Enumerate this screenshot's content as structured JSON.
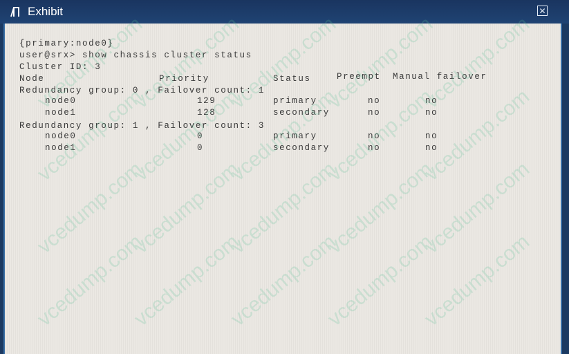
{
  "window": {
    "title": "Exhibit",
    "close_icon": "close-icon",
    "title_icon": "exhibit-icon"
  },
  "terminal": {
    "prompt_context": "{primary:node0}",
    "command": "user@srx> show chassis cluster status",
    "cluster_id": "Cluster ID: 3",
    "headers": [
      "Node",
      "Priority",
      "Status",
      "Preempt",
      "Manual failover"
    ],
    "groups": [
      {
        "label": "Redundancy group: 0 , Failover count: 1",
        "rows": [
          [
            "node0",
            "129",
            "primary",
            "no",
            "no"
          ],
          [
            "node1",
            "128",
            "secondary",
            "no",
            "no"
          ]
        ]
      },
      {
        "label": "Redundancy group: 1 , Failover count: 3",
        "rows": [
          [
            "node0",
            "0",
            "primary",
            "no",
            "no"
          ],
          [
            "node1",
            "0",
            "secondary",
            "no",
            "no"
          ]
        ]
      }
    ]
  },
  "watermark": "vcedump.com"
}
